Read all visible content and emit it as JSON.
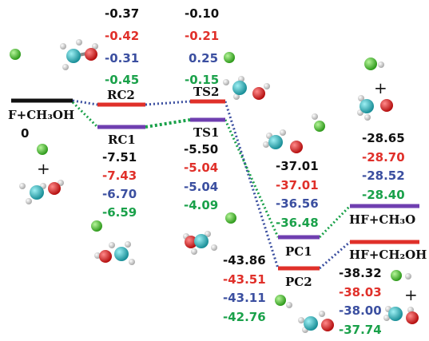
{
  "colors": {
    "black": "#111111",
    "red": "#e0302a",
    "blue": "#3b4fa0",
    "green": "#1aa14a",
    "purple": "#6f3fb0",
    "carbon": "#2aa8b0",
    "oxygen": "#d81c1c",
    "hydrogen": "#f2f2f2",
    "fluorine": "#59c93a"
  },
  "labels": {
    "reactant": "F+CH₃OH",
    "rc1": "RC1",
    "rc2": "RC2",
    "ts1": "TS1",
    "ts2": "TS2",
    "pc1": "PC1",
    "pc2": "PC2",
    "p_ch3o": "HF+CH₃O",
    "p_ch2oh": "HF+CH₂OH",
    "plus": "+"
  },
  "energies": {
    "reactant": [
      "0"
    ],
    "rc2": [
      "-0.37",
      "-0.42",
      "-0.31",
      "-0.45"
    ],
    "rc1": [
      "-7.51",
      "-7.43",
      "-6.70",
      "-6.59"
    ],
    "ts2": [
      "-0.10",
      "-0.21",
      "0.25",
      "-0.15"
    ],
    "ts1": [
      "-5.50",
      "-5.04",
      "-5.04",
      "-4.09"
    ],
    "pc1": [
      "-37.01",
      "-37.01",
      "-36.56",
      "-36.48"
    ],
    "pc2": [
      "-43.86",
      "-43.51",
      "-43.11",
      "-42.76"
    ],
    "p_ch3o": [
      "-28.65",
      "-28.70",
      "-28.52",
      "-28.40"
    ],
    "p_ch2oh": [
      "-38.32",
      "-38.03",
      "-38.00",
      "-37.74"
    ]
  }
}
